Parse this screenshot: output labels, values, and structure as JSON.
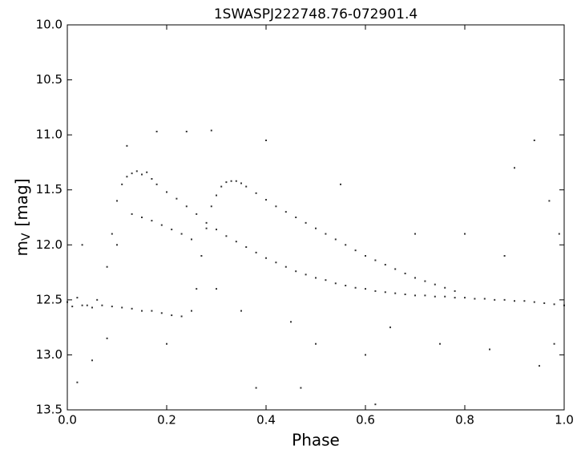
{
  "chart_data": {
    "type": "scatter",
    "title": "1SWASPJ222748.76-072901.4",
    "xlabel": "Phase",
    "ylabel": {
      "main": "m",
      "sub": "V",
      "rest": "[mag]"
    },
    "color": "#333333",
    "invert_y": true,
    "xlim": [
      0,
      1
    ],
    "ylim": [
      10,
      13.5
    ],
    "xticks": [
      {
        "value": 0,
        "label": "0.0"
      },
      0.2,
      0.4,
      0.6,
      0.8,
      {
        "value": 1,
        "label": "1.0"
      }
    ],
    "yticks": [
      {
        "value": 10,
        "label": "10.0"
      },
      10.5,
      {
        "value": 11,
        "label": "11.0"
      },
      11.5,
      {
        "value": 12,
        "label": "12.0"
      },
      12.5,
      {
        "value": 13,
        "label": "13.0"
      },
      13.5
    ],
    "x": [
      0.0,
      0.02,
      0.04,
      0.06,
      0.08,
      0.09,
      0.1,
      0.11,
      0.12,
      0.13,
      0.14,
      0.15,
      0.16,
      0.17,
      0.18,
      0.2,
      0.22,
      0.24,
      0.26,
      0.28,
      0.3,
      0.32,
      0.34,
      0.36,
      0.38,
      0.4,
      0.42,
      0.44,
      0.46,
      0.48,
      0.5,
      0.52,
      0.54,
      0.56,
      0.58,
      0.6,
      0.62,
      0.64,
      0.66,
      0.68,
      0.7,
      0.72,
      0.74,
      0.76,
      0.78,
      0.8,
      0.82,
      0.84,
      0.86,
      0.88,
      0.9,
      0.92,
      0.94,
      0.96,
      0.98,
      1.0,
      0.01,
      0.03,
      0.05,
      0.07,
      0.09,
      0.11,
      0.13,
      0.15,
      0.17,
      0.19,
      0.21,
      0.23,
      0.25,
      0.26,
      0.27,
      0.28,
      0.29,
      0.3,
      0.31,
      0.32,
      0.33,
      0.34,
      0.35,
      0.36,
      0.38,
      0.4,
      0.42,
      0.44,
      0.46,
      0.48,
      0.5,
      0.52,
      0.54,
      0.56,
      0.58,
      0.6,
      0.62,
      0.64,
      0.66,
      0.68,
      0.7,
      0.72,
      0.74,
      0.76,
      0.78,
      0.13,
      0.15,
      0.17,
      0.19,
      0.21,
      0.23,
      0.25,
      0.18,
      0.24,
      0.29,
      0.4,
      0.1,
      0.05,
      0.02,
      0.5,
      0.47,
      0.6,
      0.75,
      0.85,
      0.95,
      0.98,
      0.9,
      0.94,
      0.55,
      0.8,
      0.7,
      0.3,
      0.35,
      0.2,
      0.45,
      0.65,
      0.88,
      0.99,
      0.12,
      0.38,
      0.08,
      0.62,
      0.03,
      0.97
    ],
    "values": [
      12.52,
      12.48,
      12.55,
      12.5,
      12.2,
      11.9,
      11.6,
      11.45,
      11.38,
      11.35,
      11.33,
      11.36,
      11.34,
      11.4,
      11.45,
      11.52,
      11.58,
      11.65,
      11.72,
      11.8,
      11.86,
      11.92,
      11.97,
      12.02,
      12.07,
      12.12,
      12.16,
      12.2,
      12.24,
      12.27,
      12.3,
      12.32,
      12.35,
      12.37,
      12.39,
      12.4,
      12.42,
      12.43,
      12.44,
      12.45,
      12.46,
      12.46,
      12.47,
      12.47,
      12.48,
      12.48,
      12.49,
      12.49,
      12.5,
      12.5,
      12.51,
      12.51,
      12.52,
      12.53,
      12.54,
      12.55,
      12.56,
      12.55,
      12.57,
      12.55,
      12.56,
      12.57,
      12.58,
      12.6,
      12.6,
      12.62,
      12.64,
      12.65,
      12.6,
      12.4,
      12.1,
      11.85,
      11.65,
      11.55,
      11.47,
      11.43,
      11.42,
      11.42,
      11.44,
      11.47,
      11.53,
      11.59,
      11.65,
      11.7,
      11.75,
      11.8,
      11.85,
      11.9,
      11.95,
      12.0,
      12.05,
      12.1,
      12.14,
      12.18,
      12.22,
      12.26,
      12.3,
      12.33,
      12.36,
      12.39,
      12.42,
      11.72,
      11.75,
      11.78,
      11.82,
      11.86,
      11.9,
      11.95,
      10.97,
      10.97,
      10.96,
      11.05,
      12.0,
      13.05,
      13.25,
      12.9,
      13.3,
      13.0,
      12.9,
      12.95,
      13.1,
      12.9,
      11.3,
      11.05,
      11.45,
      11.9,
      11.9,
      12.4,
      12.6,
      12.9,
      12.7,
      12.75,
      12.1,
      11.9,
      11.1,
      13.3,
      12.85,
      13.45,
      12.0,
      11.6
    ]
  }
}
